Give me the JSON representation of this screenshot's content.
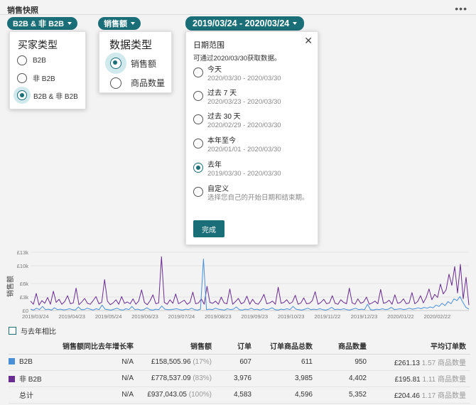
{
  "header": {
    "title": "销售快照",
    "more_icon": "more-horizontal-icon"
  },
  "filters": {
    "buyer_pill": "B2B & 非 B2B",
    "metric_pill": "销售额",
    "date_pill": "2019/03/24 - 2020/03/24"
  },
  "buyer_popover": {
    "title": "买家类型",
    "options": [
      {
        "label": "B2B",
        "selected": false
      },
      {
        "label": "非 B2B",
        "selected": false
      },
      {
        "label": "B2B & 非 B2B",
        "selected": true
      }
    ]
  },
  "metric_popover": {
    "title": "数据类型",
    "options": [
      {
        "label": "销售额",
        "selected": true
      },
      {
        "label": "商品数量",
        "selected": false
      }
    ]
  },
  "date_popover": {
    "title": "日期范围",
    "close_icon": "close-icon",
    "note": "可通过2020/03/30获取数据。",
    "options": [
      {
        "label": "今天",
        "range": "2020/03/30 - 2020/03/30",
        "selected": false
      },
      {
        "label": "过去 7 天",
        "range": "2020/03/23 - 2020/03/30",
        "selected": false
      },
      {
        "label": "过去 30 天",
        "range": "2020/02/29 - 2020/03/30",
        "selected": false
      },
      {
        "label": "本年至今",
        "range": "2020/01/01 - 2020/03/30",
        "selected": false
      },
      {
        "label": "去年",
        "range": "2019/03/30 - 2020/03/30",
        "selected": true
      },
      {
        "label": "自定义",
        "range": "选择您自己的开始日期和结束期。",
        "selected": false
      }
    ],
    "done_label": "完成"
  },
  "chart_data": {
    "type": "line",
    "ylabel": "销售额",
    "ylim": [
      0,
      13000
    ],
    "y_ticks": [
      "£0",
      "£3k",
      "£6k",
      "£10k",
      "£13k"
    ],
    "y_tick_values": [
      0,
      3000,
      6000,
      10000,
      13000
    ],
    "x_ticks": [
      "2019/03/24",
      "2019/04/23",
      "2019/05/24",
      "2019/06/23",
      "2019/07/24",
      "2019/08/23",
      "2019/09/23",
      "2019/10/23",
      "2019/11/22",
      "2019/12/23",
      "2020/01/22",
      "2020/02/22"
    ],
    "series": [
      {
        "color": "#6a2c91",
        "values": [
          2100,
          1400,
          3800,
          1200,
          2200,
          1600,
          2900,
          1400,
          4300,
          1800,
          2500,
          1400,
          2000,
          3300,
          1500,
          1700,
          5000,
          1300,
          1900,
          2700,
          1600,
          1400,
          2200,
          3100,
          1500,
          1800,
          6900,
          2100,
          1300,
          1700,
          2400,
          1400,
          3100,
          1600,
          1900,
          1500,
          2600,
          1400,
          2100,
          4600,
          1800,
          1300,
          2200,
          3500,
          1500,
          1700,
          12000,
          1800,
          1400,
          2400,
          1600,
          3700,
          1500,
          1900,
          2300,
          1400,
          1800,
          4100,
          1500,
          1700,
          2600,
          1400,
          5400,
          1800,
          1600,
          2100,
          1400,
          3000,
          1700,
          1500,
          4800,
          1400,
          2000,
          2700,
          1500,
          1800,
          3200,
          1400,
          2500,
          1600,
          1400,
          2300,
          3600,
          1500,
          1700,
          2100,
          1400,
          5200,
          1600,
          1800,
          2400,
          1500,
          1900,
          3400,
          1400,
          1700,
          2800,
          1500,
          1600,
          2200,
          4200,
          1400,
          1800,
          2500,
          1500,
          1700,
          3300,
          1600,
          1400,
          2400,
          1800,
          1500,
          5000,
          1700,
          1400,
          2600,
          1600,
          1900,
          3000,
          1400,
          1700,
          2100,
          1500,
          4700,
          1600,
          1800,
          2300,
          1400,
          3500,
          1600,
          1800,
          2600,
          1500,
          1700,
          4000,
          1500,
          2000,
          3300,
          1700,
          2900,
          4800,
          2400,
          3600,
          2900,
          5900,
          3700,
          4600,
          8100,
          5600,
          9800,
          3900,
          10300,
          2600,
          7400,
          1200
        ]
      },
      {
        "color": "#4a90d9",
        "values": [
          300,
          100,
          500,
          200,
          900,
          200,
          300,
          100,
          600,
          200,
          300,
          150,
          200,
          400,
          200,
          100,
          800,
          200,
          200,
          500,
          300,
          100,
          400,
          200,
          1200,
          300,
          200,
          100,
          300,
          500,
          200,
          100,
          400,
          200,
          900,
          200,
          300,
          100,
          200,
          600,
          200,
          100,
          300,
          200,
          1000,
          300,
          200,
          200,
          300,
          400,
          200,
          100,
          300,
          200,
          500,
          200,
          100,
          300,
          11500,
          200,
          300,
          200,
          500,
          300,
          200,
          100,
          400,
          200,
          300,
          800,
          200,
          100,
          300,
          200,
          500,
          200,
          300,
          100,
          400,
          200,
          300,
          600,
          200,
          100,
          300,
          200,
          400,
          200,
          900,
          300,
          200,
          100,
          300,
          500,
          200,
          300,
          200,
          400,
          200,
          100,
          300,
          700,
          200,
          300,
          200,
          400,
          200,
          100,
          300,
          500,
          200,
          300,
          200,
          1400,
          200,
          100,
          300,
          200,
          400,
          200,
          300,
          700,
          200,
          300,
          400,
          200,
          300,
          500,
          300,
          400,
          600,
          400,
          700,
          500,
          800,
          600,
          1200,
          900,
          1600,
          1100,
          2000,
          1500,
          2600,
          2200,
          3100,
          1800,
          700,
          300
        ]
      }
    ]
  },
  "compare": {
    "label": "与去年相比"
  },
  "table": {
    "headers": [
      "",
      "销售额同比去年增长率",
      "销售额",
      "订单",
      "订单商品总数",
      "商品数量",
      "平均订单数"
    ],
    "rows": [
      {
        "color": "#4a90d9",
        "name": "B2B",
        "growth": "N/A",
        "sales": "£158,505.96",
        "sales_pct": "(17%)",
        "orders": "607",
        "order_items": "611",
        "units": "950",
        "avg": "£261.13",
        "avg_sub": "1.57 商品数量"
      },
      {
        "color": "#6a2c91",
        "name": "非 B2B",
        "growth": "N/A",
        "sales": "£778,537.09",
        "sales_pct": "(83%)",
        "orders": "3,976",
        "order_items": "3,985",
        "units": "4,402",
        "avg": "£195.81",
        "avg_sub": "1.11 商品数量"
      },
      {
        "color": "",
        "name": "总计",
        "growth": "N/A",
        "sales": "£937,043.05",
        "sales_pct": "(100%)",
        "orders": "4,583",
        "order_items": "4,596",
        "units": "5,352",
        "avg": "£204.46",
        "avg_sub": "1.17 商品数量"
      }
    ]
  }
}
